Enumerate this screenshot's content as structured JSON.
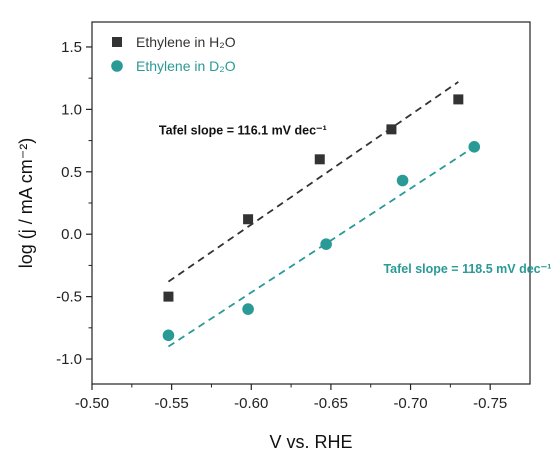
{
  "chart_data": {
    "type": "scatter",
    "xlabel": "V vs. RHE",
    "ylabel": "log (j / mA cm⁻²)",
    "xlim": [
      -0.5,
      -0.775
    ],
    "ylim": [
      -1.2,
      1.7
    ],
    "x_reversed": true,
    "x_ticks": [
      "-0.50",
      "-0.55",
      "-0.60",
      "-0.65",
      "-0.70",
      "-0.75"
    ],
    "y_ticks": [
      "-1.0",
      "-0.5",
      "0.0",
      "0.5",
      "1.0",
      "1.5"
    ],
    "grid": false,
    "legend_position": "top-left",
    "series": [
      {
        "name": "Ethylene in H₂O",
        "marker": "square",
        "color": "#333333",
        "x": [
          -0.548,
          -0.598,
          -0.643,
          -0.688,
          -0.73
        ],
        "y": [
          -0.5,
          0.12,
          0.6,
          0.84,
          1.08
        ],
        "fit": {
          "x": [
            -0.548,
            -0.73
          ],
          "y": [
            -0.38,
            1.22
          ],
          "style": "dashed"
        }
      },
      {
        "name": "Ethylene in D₂O",
        "marker": "circle",
        "color": "#2a9a96",
        "x": [
          -0.548,
          -0.598,
          -0.647,
          -0.695,
          -0.74
        ],
        "y": [
          -0.81,
          -0.6,
          -0.08,
          0.43,
          0.7
        ],
        "fit": {
          "x": [
            -0.548,
            -0.74
          ],
          "y": [
            -0.9,
            0.7
          ],
          "style": "dashed"
        }
      }
    ],
    "annotations": [
      {
        "text": "Tafel slope = 116.1 mV dec⁻¹",
        "color": "#111111",
        "x": -0.542,
        "y": 0.8
      },
      {
        "text": "Tafel slope = 118.5 mV dec⁻¹",
        "color": "#2a9a96",
        "x": -0.683,
        "y": -0.31
      }
    ]
  }
}
